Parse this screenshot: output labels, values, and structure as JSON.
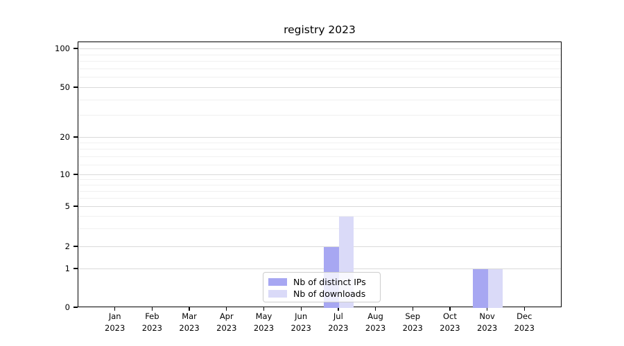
{
  "chart_data": {
    "type": "bar",
    "title": "registry 2023",
    "x_categories": [
      "Jan 2023",
      "Feb 2023",
      "Mar 2023",
      "Apr 2023",
      "May 2023",
      "Jun 2023",
      "Jul 2023",
      "Aug 2023",
      "Sep 2023",
      "Oct 2023",
      "Nov 2023",
      "Dec 2023"
    ],
    "series": [
      {
        "name": "Nb of distinct IPs",
        "color": "#a7a7f2",
        "values": [
          0,
          0,
          0,
          0,
          0,
          0,
          2,
          0,
          0,
          0,
          1,
          0
        ]
      },
      {
        "name": "Nb of downloads",
        "color": "#dadaf8",
        "values": [
          0,
          0,
          0,
          0,
          0,
          0,
          4,
          0,
          0,
          0,
          1,
          0
        ]
      }
    ],
    "y_axis": {
      "scale": "symlog",
      "major_ticks": [
        0,
        1,
        2,
        5,
        10,
        20,
        50,
        100
      ],
      "minor_gridlines": [
        3,
        4,
        6,
        7,
        8,
        9,
        12,
        14,
        16,
        18,
        30,
        40,
        60,
        70,
        80,
        90
      ],
      "range": [
        0,
        113
      ]
    },
    "xlabel": "",
    "ylabel": "",
    "grid": "horizontal",
    "legend_position": "inside-bottom-center"
  },
  "colors": {
    "grid_major": "#d9d9d9",
    "grid_minor": "#f0f0f0",
    "frame": "#000000",
    "text": "#000000",
    "legend_border": "#cccccc"
  }
}
